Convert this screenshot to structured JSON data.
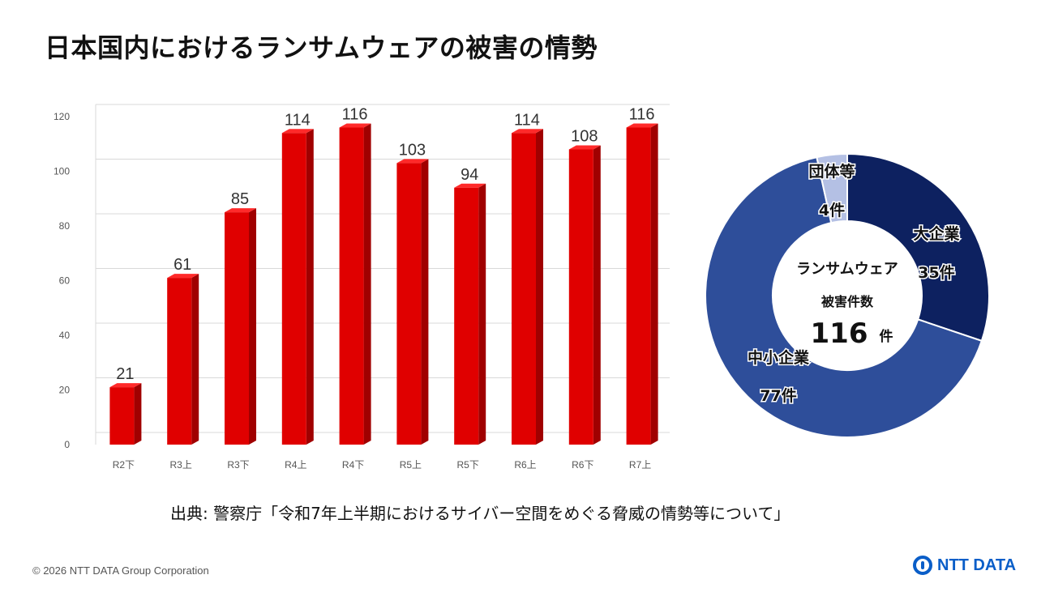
{
  "page": {
    "title": "日本国内におけるランサムウェアの被害の情勢",
    "source": "出典: 警察庁「令和7年上半期におけるサイバー空間をめぐる脅威の情勢等について」",
    "copyright": "© 2026 NTT DATA Group Corporation",
    "logo_text": "NTT DATA"
  },
  "colors": {
    "bar": "#e00000",
    "bar_top": "#ff2a2a",
    "bar_side": "#a00000",
    "grid": "#d9d9d9",
    "large": "#0d2160",
    "sme": "#2e4e9a",
    "org": "#b4c0e4"
  },
  "chart_data": [
    {
      "type": "bar",
      "title": "",
      "categories": [
        "R2下",
        "R3上",
        "R3下",
        "R4上",
        "R4下",
        "R5上",
        "R5下",
        "R6上",
        "R6下",
        "R7上"
      ],
      "values": [
        21,
        61,
        85,
        114,
        116,
        103,
        94,
        114,
        108,
        116
      ],
      "yticks": [
        0,
        20,
        40,
        60,
        80,
        100,
        120
      ],
      "ylim": [
        0,
        120
      ],
      "xlabel": "",
      "ylabel": "",
      "grid": true
    },
    {
      "type": "pie",
      "style": "donut",
      "center_title": "ランサムウェア",
      "center_subtitle": "被害件数",
      "total": "116",
      "total_unit": "件",
      "slices": [
        {
          "name": "大企業",
          "value": 35,
          "label": "35件"
        },
        {
          "name": "中小企業",
          "value": 77,
          "label": "77件"
        },
        {
          "name": "団体等",
          "value": 4,
          "label": "4件"
        }
      ]
    }
  ]
}
